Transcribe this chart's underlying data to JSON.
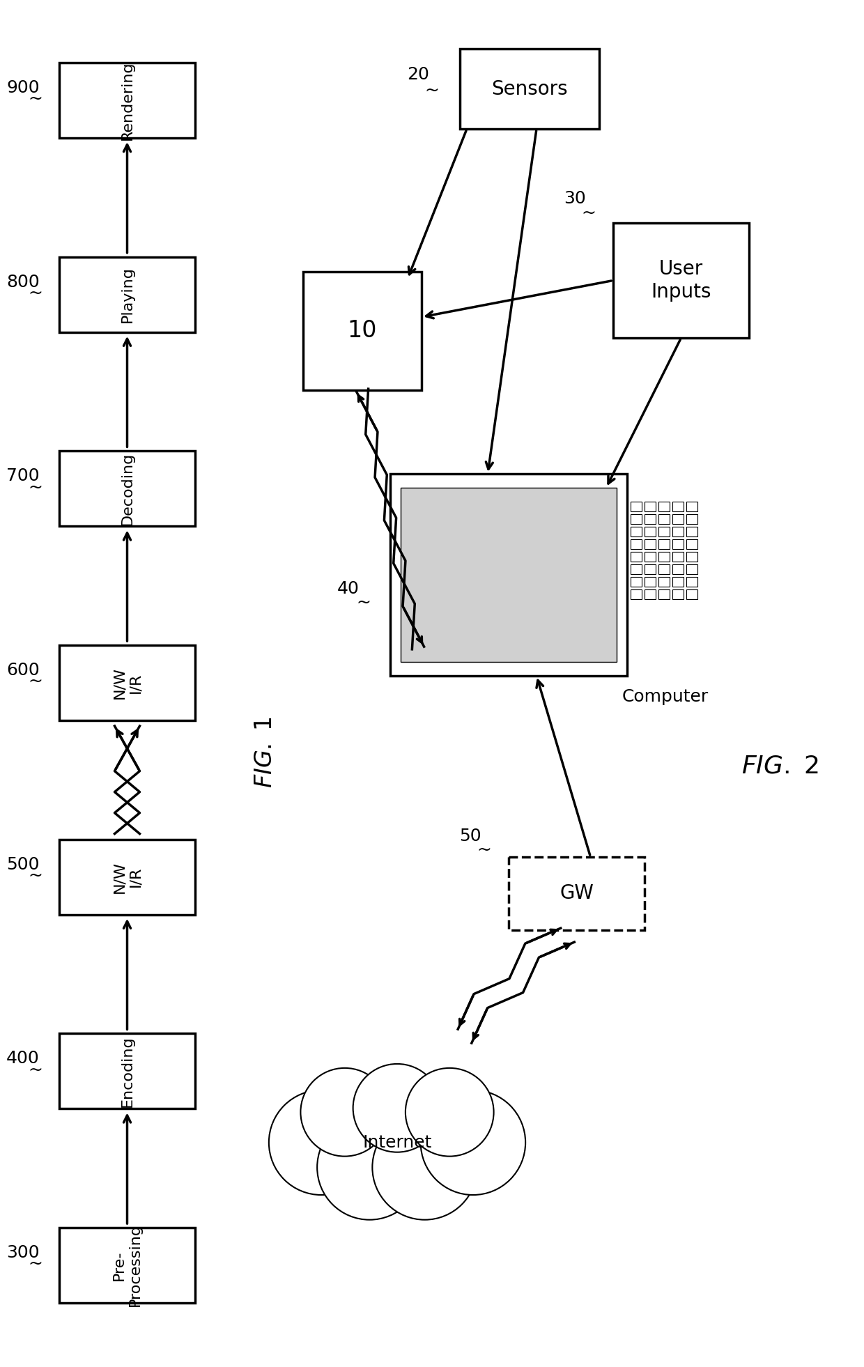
{
  "bg_color": "#ffffff",
  "lw": 2.5,
  "fig1": {
    "caption": "FIG. 1",
    "boxes": [
      {
        "label": "Pre-\nProcessing",
        "ref": "300"
      },
      {
        "label": "Encoding",
        "ref": "400"
      },
      {
        "label": "N/W\nI/R",
        "ref": "500"
      },
      {
        "label": "N/W\nI/R",
        "ref": "600"
      },
      {
        "label": "Decoding",
        "ref": "700"
      },
      {
        "label": "Playing",
        "ref": "800"
      },
      {
        "label": "Rendering",
        "ref": "900"
      }
    ],
    "wireless_between": [
      2,
      3
    ]
  },
  "fig2": {
    "caption": "FIG. 2",
    "sensors": {
      "label": "Sensors",
      "ref": "20"
    },
    "box10": {
      "label": "10"
    },
    "user_inputs": {
      "label": "User\nInputs",
      "ref": "30"
    },
    "computer": {
      "label": "Computer",
      "ref": "40"
    },
    "gw": {
      "label": "GW",
      "ref": "50"
    },
    "internet": {
      "label": "Internet"
    }
  }
}
